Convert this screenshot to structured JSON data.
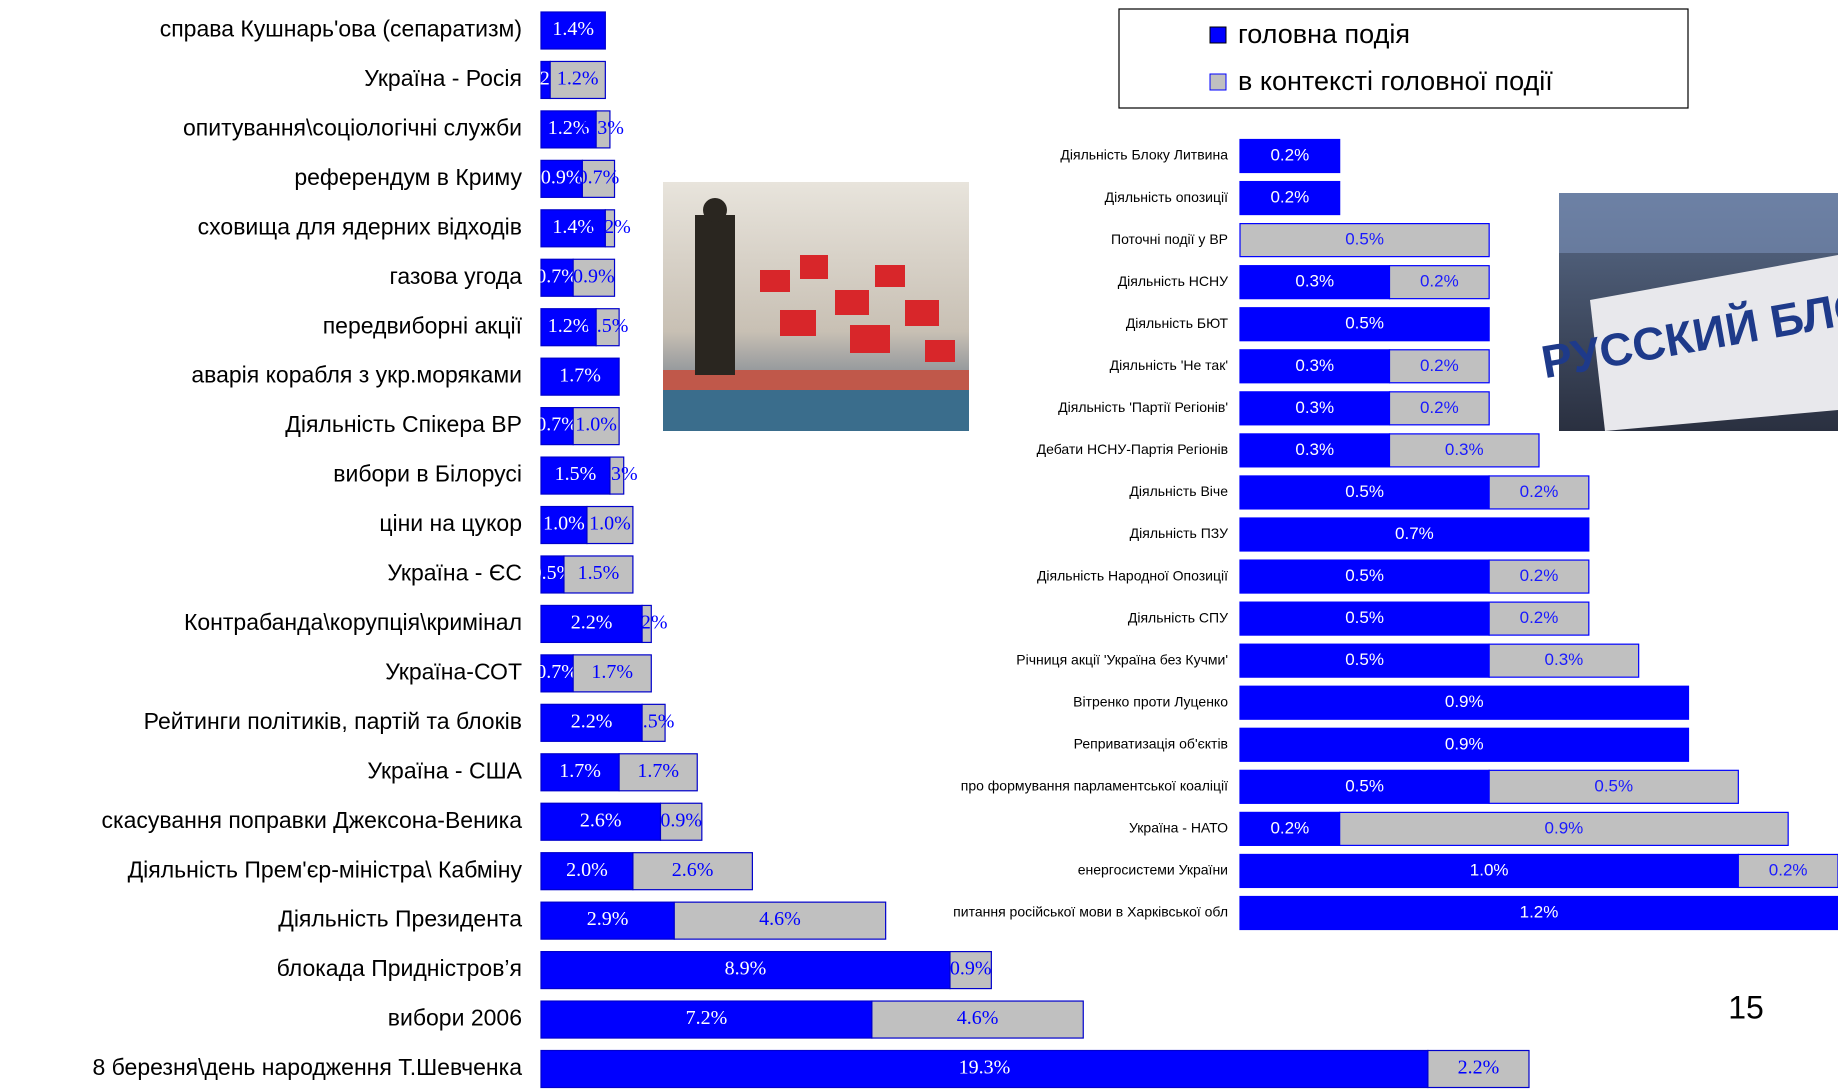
{
  "chart_data": [
    {
      "type": "bar",
      "orientation": "horizontal",
      "categories": [
        "справа Кушнарь'ова (сепаратизм)",
        "Україна - Росія",
        "опитування\\соціологічні служби",
        "референдум в Криму",
        "сховища для ядерних відходів",
        "газова угода",
        "передвиборні акції",
        "аварія корабля з укр.моряками",
        "Діяльність Спікера ВР",
        "вибори в Білорусі",
        "ціни на цукор",
        "Україна - ЄС",
        "Контрабанда\\корупція\\кримінал",
        "Україна-СОТ",
        "Рейтинги політиків, партій та блоків",
        "Україна - США",
        "скасування поправки Джексона-Веника",
        "Діяльність Прем'єр-міністра\\ Кабміну",
        "Діяльність Президента",
        "блокада Придністров’я",
        "вибори 2006",
        "8 березня\\день народження Т.Шевченка"
      ],
      "series": [
        {
          "name": "головна подія",
          "color": "#0000ff",
          "values": [
            1.4,
            0.2,
            1.2,
            0.9,
            1.4,
            0.7,
            1.2,
            1.7,
            0.7,
            1.5,
            1.0,
            0.5,
            2.2,
            0.7,
            2.2,
            1.7,
            2.6,
            2.0,
            2.9,
            8.9,
            7.2,
            19.3
          ],
          "value_labels": [
            "1.4%",
            "0.2%",
            "1.2%",
            "0.9%",
            "1.4%",
            "0.7%",
            "1.2%",
            "1.7%",
            "0.7%",
            "1.5%",
            "1.0%",
            "0.5%",
            "2.2%",
            "0.7%",
            "2.2%",
            "1.7%",
            "2.6%",
            "2.0%",
            "2.9%",
            "8.9%",
            "7.2%",
            "19.3%"
          ]
        },
        {
          "name": "в контексті головної події",
          "color": "#c0c0c0",
          "values": [
            null,
            1.2,
            0.3,
            0.7,
            0.2,
            0.9,
            0.5,
            null,
            1.0,
            0.3,
            1.0,
            1.5,
            0.2,
            1.7,
            0.5,
            1.7,
            0.9,
            2.6,
            4.6,
            0.9,
            4.6,
            2.2
          ],
          "value_labels": [
            null,
            "1.2%",
            "0.3%",
            "0.7%",
            "0.2%",
            "0.9%",
            "0.5%",
            null,
            "1.0%",
            "0.3%",
            "1.0%",
            "1.5%",
            "0.2%",
            "1.7%",
            "0.5%",
            "1.7%",
            "0.9%",
            "2.6%",
            "4.6%",
            "0.9%",
            "4.6%",
            "2.2%"
          ]
        }
      ],
      "xlim": [
        0,
        21.5
      ]
    },
    {
      "type": "bar",
      "orientation": "horizontal",
      "categories": [
        "Діяльність Блоку Литвина",
        "Діяльність опозиції",
        "Поточні події у ВР",
        "Діяльність НСНУ",
        "Діяльність БЮТ",
        "Діяльність 'Не так'",
        "Діяльність 'Партії Регіонів'",
        "Дебати НСНУ-Партія Регіонів",
        "Діяльність Віче",
        "Діяльність ПЗУ",
        "Діяльність Народної Опозиції",
        "Діяльність СПУ",
        "Річниця акції 'Україна без Кучми'",
        "Вітренко проти Луценко",
        "Реприватизація об'єктів",
        "про формування парламентської коаліції",
        "Україна - НАТО",
        "енергосистеми України",
        "питання російської мови в Харківської обл"
      ],
      "series": [
        {
          "name": "головна подія",
          "color": "#0000ff",
          "values": [
            0.2,
            0.2,
            null,
            0.3,
            0.5,
            0.3,
            0.3,
            0.3,
            0.5,
            0.7,
            0.5,
            0.5,
            0.5,
            0.9,
            0.9,
            0.5,
            0.2,
            1.0,
            1.2
          ],
          "value_labels": [
            "0.2%",
            "0.2%",
            null,
            "0.3%",
            "0.5%",
            "0.3%",
            "0.3%",
            "0.3%",
            "0.5%",
            "0.7%",
            "0.5%",
            "0.5%",
            "0.5%",
            "0.9%",
            "0.9%",
            "0.5%",
            "0.2%",
            "1.0%",
            "1.2%"
          ]
        },
        {
          "name": "в контексті головної події",
          "color": "#c0c0c0",
          "values": [
            null,
            null,
            0.5,
            0.2,
            null,
            0.2,
            0.2,
            0.3,
            0.2,
            null,
            0.2,
            0.2,
            0.3,
            null,
            null,
            0.5,
            0.9,
            0.2,
            null
          ],
          "value_labels": [
            null,
            null,
            "0.5%",
            "0.2%",
            null,
            "0.2%",
            "0.2%",
            "0.3%",
            "0.2%",
            null,
            "0.2%",
            "0.2%",
            "0.3%",
            null,
            null,
            "0.5%",
            "0.9%",
            "0.2%",
            null
          ]
        }
      ],
      "xlim": [
        0,
        1.2
      ]
    }
  ],
  "page_number": "15"
}
